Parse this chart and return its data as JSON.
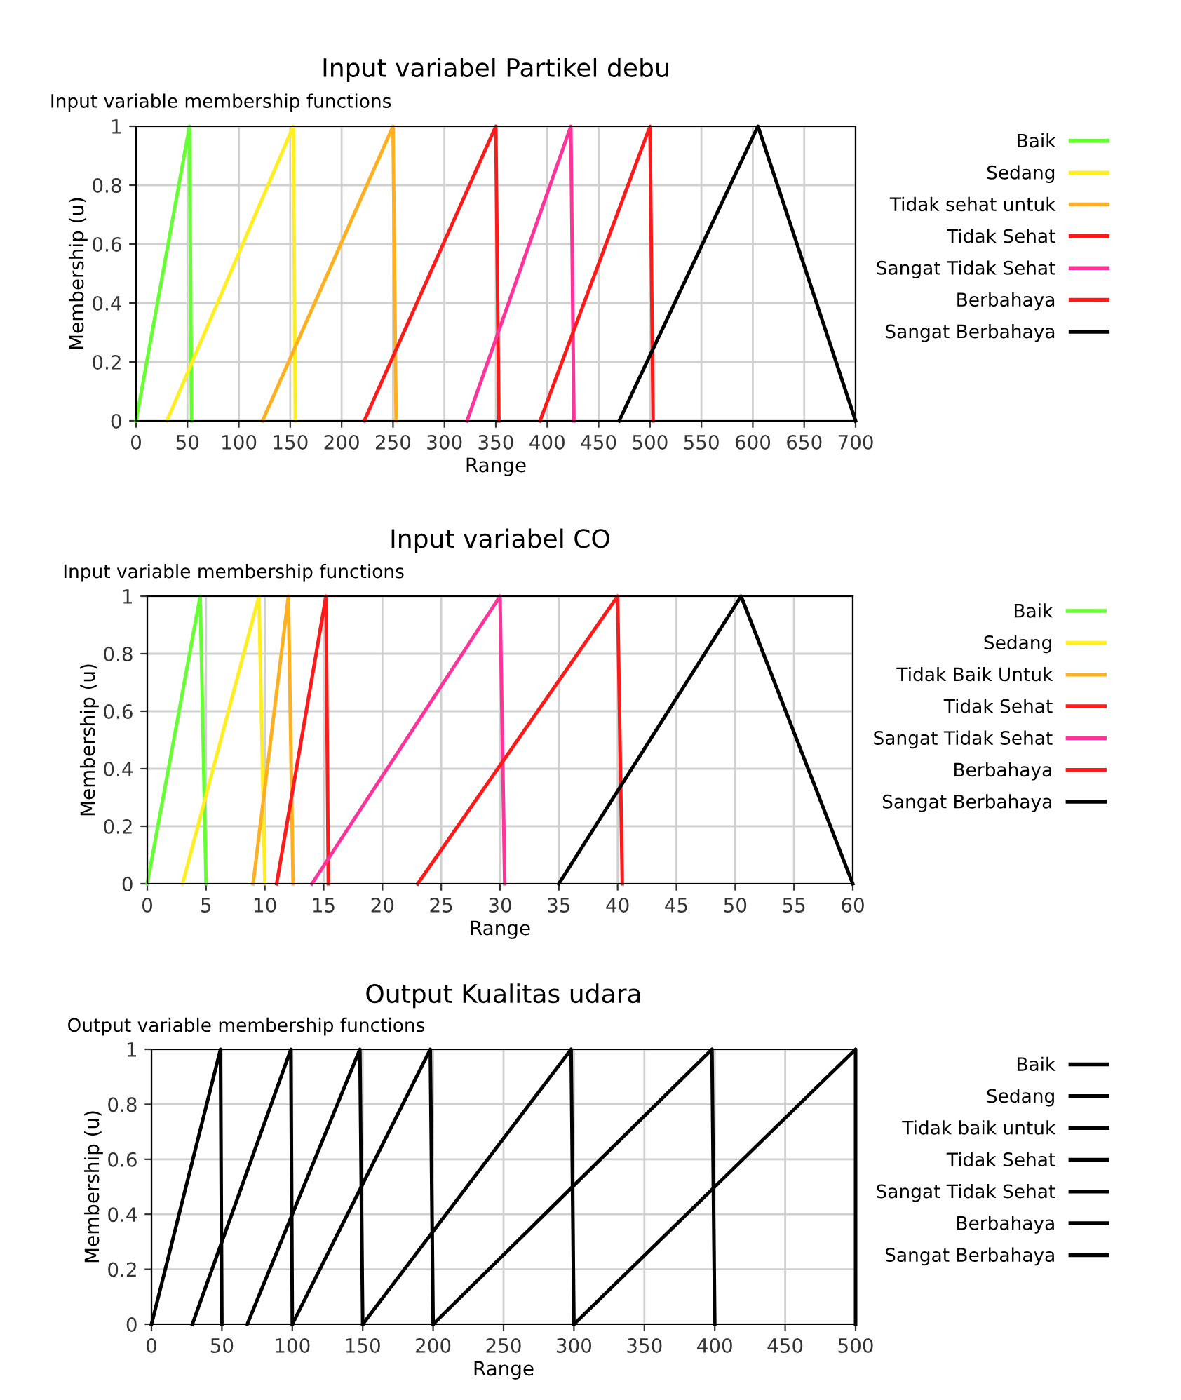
{
  "chart_data": [
    {
      "type": "line",
      "title": "Input variabel Partikel debu",
      "subtitle": "Input variable membership functions",
      "xlabel": "Range",
      "ylabel": "Membership (u)",
      "xlim": [
        0,
        700
      ],
      "ylim": [
        0,
        1
      ],
      "xticks": [
        0,
        50,
        100,
        150,
        200,
        250,
        300,
        350,
        400,
        450,
        500,
        550,
        600,
        650,
        700
      ],
      "yticks": [
        0,
        0.2,
        0.4,
        0.6,
        0.8,
        1
      ],
      "grid": true,
      "legend": "right",
      "marker": "none",
      "line_style": "solid",
      "series": [
        {
          "name": "Baik",
          "color": "#66ff33",
          "x": [
            0,
            52,
            54
          ],
          "values": [
            0,
            1,
            0
          ]
        },
        {
          "name": "Sedang",
          "color": "#ffee22",
          "x": [
            30,
            153,
            155
          ],
          "values": [
            0,
            1,
            0
          ]
        },
        {
          "name": "Tidak sehat untuk",
          "color": "#ffb020",
          "x": [
            123,
            250,
            253
          ],
          "values": [
            0,
            1,
            0
          ]
        },
        {
          "name": "Tidak Sehat",
          "color": "#ff1a1a",
          "x": [
            222,
            350,
            353
          ],
          "values": [
            0,
            1,
            0
          ]
        },
        {
          "name": "Sangat Tidak Sehat",
          "color": "#ff3399",
          "x": [
            322,
            423,
            426
          ],
          "values": [
            0,
            1,
            0
          ]
        },
        {
          "name": "Berbahaya",
          "color": "#ff1a1a",
          "x": [
            393,
            500,
            503
          ],
          "values": [
            0,
            1,
            0
          ]
        },
        {
          "name": "Sangat Berbahaya",
          "color": "#000000",
          "x": [
            470,
            605,
            700
          ],
          "values": [
            0,
            1,
            0
          ]
        }
      ]
    },
    {
      "type": "line",
      "title": "Input variabel CO",
      "subtitle": "Input variable membership functions",
      "xlabel": "Range",
      "ylabel": "Membership (u)",
      "xlim": [
        0,
        60
      ],
      "ylim": [
        0,
        1
      ],
      "xticks": [
        0,
        5,
        10,
        15,
        20,
        25,
        30,
        35,
        40,
        45,
        50,
        55,
        60
      ],
      "yticks": [
        0,
        0.2,
        0.4,
        0.6,
        0.8,
        1
      ],
      "grid": true,
      "legend": "right",
      "marker": "none",
      "line_style": "solid",
      "series": [
        {
          "name": "Baik",
          "color": "#66ff33",
          "x": [
            0,
            4.5,
            5
          ],
          "values": [
            0,
            1,
            0
          ]
        },
        {
          "name": "Sedang",
          "color": "#ffee22",
          "x": [
            3,
            9.5,
            10
          ],
          "values": [
            0,
            1,
            0
          ]
        },
        {
          "name": "Tidak Baik Untuk",
          "color": "#ffb020",
          "x": [
            9,
            12,
            12.4
          ],
          "values": [
            0,
            1,
            0
          ]
        },
        {
          "name": "Tidak Sehat",
          "color": "#ff1a1a",
          "x": [
            11,
            15.2,
            15.4
          ],
          "values": [
            0,
            1,
            0
          ]
        },
        {
          "name": "Sangat Tidak Sehat",
          "color": "#ff3399",
          "x": [
            14,
            30,
            30.4
          ],
          "values": [
            0,
            1,
            0
          ]
        },
        {
          "name": "Berbahaya",
          "color": "#ff1a1a",
          "x": [
            23,
            40,
            40.4
          ],
          "values": [
            0,
            1,
            0
          ]
        },
        {
          "name": "Sangat Berbahaya",
          "color": "#000000",
          "x": [
            35,
            50.5,
            60
          ],
          "values": [
            0,
            1,
            0
          ]
        }
      ]
    },
    {
      "type": "line",
      "title": "Output Kualitas udara",
      "subtitle": "Output variable membership functions",
      "xlabel": "Range",
      "ylabel": "Membership (u)",
      "xlim": [
        0,
        500
      ],
      "ylim": [
        0,
        1
      ],
      "xticks": [
        0,
        50,
        100,
        150,
        200,
        250,
        300,
        350,
        400,
        450,
        500
      ],
      "yticks": [
        0,
        0.2,
        0.4,
        0.6,
        0.8,
        1
      ],
      "grid": true,
      "legend": "right",
      "marker": "none",
      "line_style": "solid",
      "series": [
        {
          "name": "Baik",
          "color": "#000000",
          "x": [
            0,
            49,
            50
          ],
          "values": [
            0,
            1,
            0
          ]
        },
        {
          "name": "Sedang",
          "color": "#000000",
          "x": [
            29,
            99,
            100
          ],
          "values": [
            0,
            1,
            0
          ]
        },
        {
          "name": "Tidak baik untuk",
          "color": "#000000",
          "x": [
            68,
            148,
            150
          ],
          "values": [
            0,
            1,
            0
          ]
        },
        {
          "name": "Tidak Sehat",
          "color": "#000000",
          "x": [
            100,
            198,
            200
          ],
          "values": [
            0,
            1,
            0
          ]
        },
        {
          "name": "Sangat Tidak Sehat",
          "color": "#000000",
          "x": [
            150,
            298,
            300
          ],
          "values": [
            0,
            1,
            0
          ]
        },
        {
          "name": "Berbahaya",
          "color": "#000000",
          "x": [
            200,
            398,
            400
          ],
          "values": [
            0,
            1,
            0
          ]
        },
        {
          "name": "Sangat Berbahaya",
          "color": "#000000",
          "x": [
            300,
            500,
            500
          ],
          "values": [
            0,
            1,
            0
          ]
        }
      ]
    }
  ]
}
